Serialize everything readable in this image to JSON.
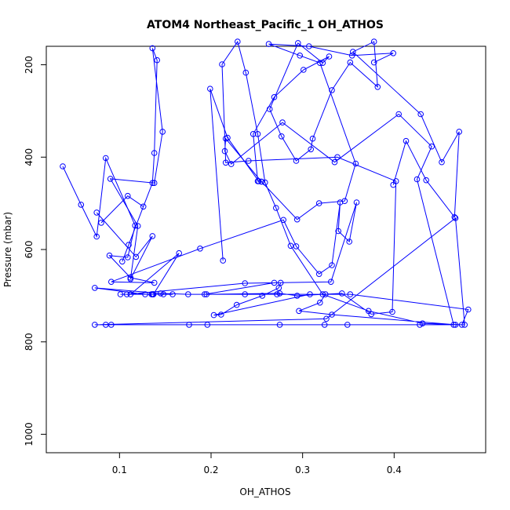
{
  "chart_data": {
    "type": "line",
    "title": "ATOM4 Northeast_Pacific_1 OH_ATHOS",
    "xlabel": "OH_ATHOS",
    "ylabel": "Pressure (mbar)",
    "xlim": [
      0.02,
      0.5
    ],
    "ylim": [
      1040,
      160
    ],
    "y_inverted": true,
    "grid": false,
    "legend": "none",
    "xticks": [
      0.1,
      0.2,
      0.3,
      0.4
    ],
    "yticks": [
      200,
      400,
      600,
      800,
      1000
    ],
    "x_tick_labels": [
      "0.1",
      "0.2",
      "0.3",
      "0.4"
    ],
    "y_tick_labels": [
      "200",
      "400",
      "600",
      "800",
      "1000"
    ],
    "line_color": "#0000ff",
    "marker": "open-circle",
    "series": [
      {
        "x": [
          0.038,
          0.058,
          0.075,
          0.085,
          0.117,
          0.109,
          0.089,
          0.112,
          0.138,
          0.091,
          0.188,
          0.279,
          0.293,
          0.318,
          0.332,
          0.341,
          0.339,
          0.351,
          0.359,
          0.331,
          0.237,
          0.108,
          0.137,
          0.148,
          0.135,
          0.136,
          0.158,
          0.137,
          0.165,
          0.112,
          0.101,
          0.128,
          0.073,
          0.145,
          0.175,
          0.195,
          0.275,
          0.294,
          0.343,
          0.375,
          0.398,
          0.402,
          0.338,
          0.241,
          0.216,
          0.212,
          0.229,
          0.238,
          0.251,
          0.259,
          0.271,
          0.287,
          0.322,
          0.372,
          0.431,
          0.474,
          0.481,
          0.352,
          0.272,
          0.237,
          0.193,
          0.269,
          0.276,
          0.274,
          0.256,
          0.228,
          0.211,
          0.203,
          0.308,
          0.325,
          0.319,
          0.296,
          0.332,
          0.467,
          0.477,
          0.467,
          0.326,
          0.073,
          0.085,
          0.091,
          0.176,
          0.196,
          0.275,
          0.324,
          0.349,
          0.428,
          0.465,
          0.425,
          0.441,
          0.405,
          0.335,
          0.278,
          0.222,
          0.215,
          0.216,
          0.255,
          0.294,
          0.318,
          0.346,
          0.358,
          0.319,
          0.297,
          0.263,
          0.307,
          0.354,
          0.399,
          0.378
        ],
        "y": [
          420,
          503,
          572,
          402,
          548,
          617,
          613,
          661,
          672,
          670,
          598,
          536,
          593,
          653,
          634,
          498,
          560,
          583,
          498,
          670,
          673,
          697,
          697,
          697,
          697,
          697,
          697,
          697,
          608,
          697,
          697,
          697,
          683,
          695,
          697,
          697,
          695,
          700,
          695,
          740,
          735,
          452,
          400,
          408,
          412,
          199,
          150,
          217,
          350,
          455,
          510,
          592,
          697,
          733,
          760,
          763,
          730,
          697,
          697,
          697,
          697,
          672,
          672,
          683,
          700,
          720,
          741,
          742,
          697,
          697,
          715,
          733,
          741,
          763,
          763,
          532,
          750,
          763,
          763,
          763,
          763,
          763,
          763,
          763,
          763,
          763,
          763,
          448,
          377,
          307,
          411,
          325,
          415,
          387,
          360,
          453,
          535,
          500,
          495,
          414,
          196,
          180,
          155,
          160,
          180,
          175,
          195
        ]
      },
      {
        "x": [
          0.08,
          0.109,
          0.126,
          0.11,
          0.103,
          0.136,
          0.138,
          0.141,
          0.136,
          0.147,
          0.138,
          0.09,
          0.12,
          0.112,
          0.136,
          0.118,
          0.075
        ],
        "y": [
          542,
          484,
          507,
          590,
          626,
          456,
          391,
          190,
          164,
          345,
          456,
          447,
          549,
          664,
          571,
          616,
          520
        ]
      },
      {
        "x": [
          0.213,
          0.199,
          0.218,
          0.252,
          0.255,
          0.251,
          0.246,
          0.269,
          0.301,
          0.329,
          0.322,
          0.295,
          0.264,
          0.277,
          0.293,
          0.309,
          0.311,
          0.332,
          0.352,
          0.382,
          0.378,
          0.355,
          0.429,
          0.452,
          0.471,
          0.466,
          0.435,
          0.413,
          0.399
        ],
        "y": [
          624,
          252,
          358,
          452,
          453,
          452,
          350,
          270,
          211,
          182,
          196,
          153,
          296,
          355,
          408,
          383,
          360,
          255,
          195,
          248,
          150,
          172,
          307,
          411,
          345,
          530,
          450,
          365,
          460
        ]
      }
    ]
  }
}
